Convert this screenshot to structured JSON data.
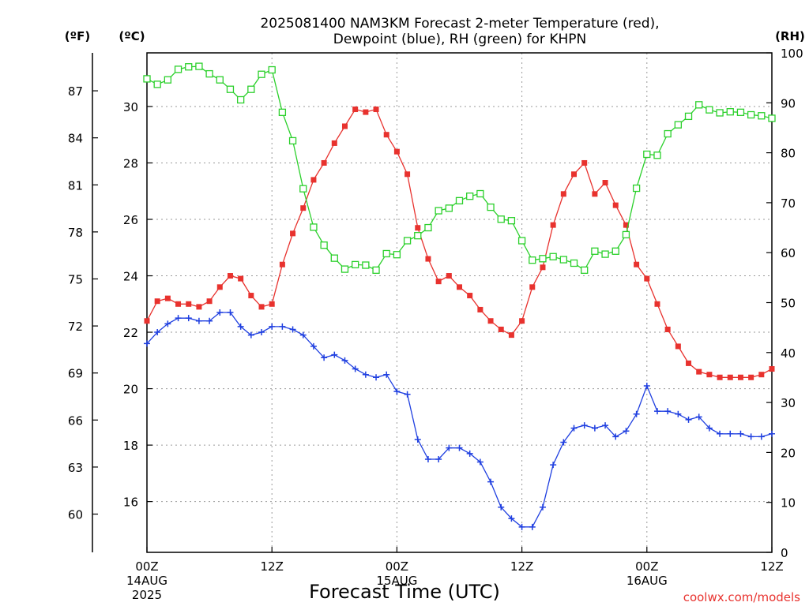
{
  "chart_data": {
    "type": "line",
    "title_lines": [
      "2025081400 NAM3KM Forecast 2-meter Temperature (red),",
      "Dewpoint (blue), RH (green) for KHPN"
    ],
    "xlabel": "Forecast Time (UTC)",
    "credit": "coolwx.com/models",
    "units": {
      "fahrenheit": "(ºF)",
      "celsius": "(ºC)",
      "rh": "(RH)"
    },
    "x_hours": [
      0,
      1,
      2,
      3,
      4,
      5,
      6,
      7,
      8,
      9,
      10,
      11,
      12,
      13,
      14,
      15,
      16,
      17,
      18,
      19,
      20,
      21,
      22,
      23,
      24,
      25,
      26,
      27,
      28,
      29,
      30,
      31,
      32,
      33,
      34,
      35,
      36,
      37,
      38,
      39,
      40,
      41,
      42,
      43,
      44,
      45,
      46,
      47,
      48,
      49,
      50,
      51,
      52,
      53,
      54,
      55,
      56,
      57,
      58,
      59,
      60
    ],
    "xlim": [
      0,
      60
    ],
    "x_ticks": [
      {
        "hour": 0,
        "lines": [
          "00Z",
          "14AUG",
          "2025"
        ]
      },
      {
        "hour": 12,
        "lines": [
          "12Z"
        ]
      },
      {
        "hour": 24,
        "lines": [
          "00Z",
          "15AUG"
        ]
      },
      {
        "hour": 36,
        "lines": [
          "12Z"
        ]
      },
      {
        "hour": 48,
        "lines": [
          "00Z",
          "16AUG"
        ]
      },
      {
        "hour": 60,
        "lines": [
          "12Z"
        ]
      }
    ],
    "axes": {
      "celsius": {
        "range": [
          14.2,
          31.9
        ],
        "ticks": [
          16,
          18,
          20,
          22,
          24,
          26,
          28,
          30
        ]
      },
      "fahrenheit": {
        "ticks": [
          60,
          63,
          66,
          69,
          72,
          75,
          78,
          81,
          84,
          87
        ]
      },
      "rh": {
        "range": [
          0,
          100
        ],
        "ticks": [
          0,
          10,
          20,
          30,
          40,
          50,
          60,
          70,
          80,
          90,
          100
        ]
      }
    },
    "grid": true,
    "series": [
      {
        "name": "Temperature",
        "axis": "celsius",
        "color": "#e8322e",
        "marker": "filled-square",
        "values": [
          22.4,
          23.1,
          23.2,
          23.0,
          23.0,
          22.9,
          23.1,
          23.6,
          24.0,
          23.9,
          23.3,
          22.9,
          23.0,
          24.4,
          25.5,
          26.4,
          27.4,
          28.0,
          28.7,
          29.3,
          29.9,
          29.8,
          29.9,
          29.0,
          28.4,
          27.6,
          25.7,
          24.6,
          23.8,
          24.0,
          23.6,
          23.3,
          22.8,
          22.4,
          22.1,
          21.9,
          22.4,
          23.6,
          24.3,
          25.8,
          26.9,
          27.6,
          28.0,
          26.9,
          27.3,
          26.5,
          25.8,
          24.4,
          23.9,
          23.0,
          22.1,
          21.5,
          20.9,
          20.6,
          20.5,
          20.4,
          20.4,
          20.4,
          20.4,
          20.5,
          20.7
        ]
      },
      {
        "name": "Dewpoint",
        "axis": "celsius",
        "color": "#1f3fe0",
        "marker": "plus",
        "values": [
          21.6,
          22.0,
          22.3,
          22.5,
          22.5,
          22.4,
          22.4,
          22.7,
          22.7,
          22.2,
          21.9,
          22.0,
          22.2,
          22.2,
          22.1,
          21.9,
          21.5,
          21.1,
          21.2,
          21.0,
          20.7,
          20.5,
          20.4,
          20.5,
          19.9,
          19.8,
          18.2,
          17.5,
          17.5,
          17.9,
          17.9,
          17.7,
          17.4,
          16.7,
          15.8,
          15.4,
          15.1,
          15.1,
          15.8,
          17.3,
          18.1,
          18.6,
          18.7,
          18.6,
          18.7,
          18.3,
          18.5,
          19.1,
          20.1,
          19.2,
          19.2,
          19.1,
          18.9,
          19.0,
          18.6,
          18.4,
          18.4,
          18.4,
          18.3,
          18.3,
          18.4
        ]
      },
      {
        "name": "RH",
        "axis": "rh",
        "color": "#2bd02b",
        "marker": "open-square",
        "values": [
          94.8,
          93.7,
          94.6,
          96.7,
          97.2,
          97.3,
          95.8,
          94.6,
          92.7,
          90.6,
          92.7,
          95.7,
          96.6,
          88.1,
          82.4,
          72.8,
          65.1,
          61.5,
          58.9,
          56.7,
          57.6,
          57.5,
          56.5,
          59.8,
          59.6,
          62.4,
          63.4,
          65.0,
          68.4,
          68.9,
          70.4,
          71.3,
          71.8,
          69.1,
          66.7,
          66.4,
          62.4,
          58.5,
          58.8,
          59.2,
          58.6,
          57.9,
          56.5,
          60.3,
          59.7,
          60.3,
          63.6,
          72.9,
          79.7,
          79.5,
          83.8,
          85.6,
          87.3,
          89.6,
          88.6,
          88.0,
          88.2,
          88.1,
          87.6,
          87.4,
          86.9
        ]
      }
    ]
  }
}
